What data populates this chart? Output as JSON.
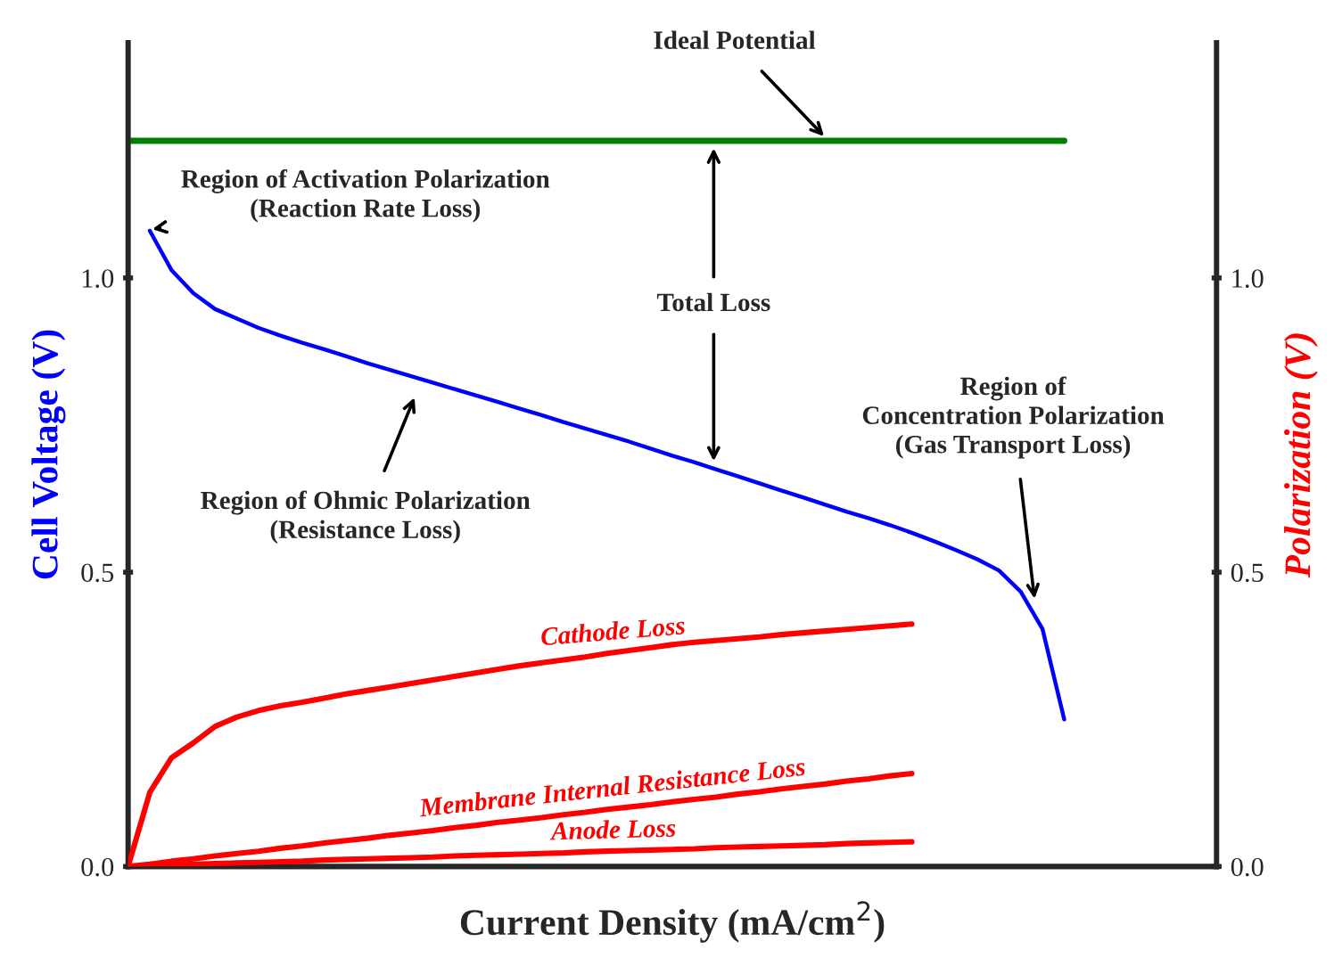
{
  "chart_data": {
    "type": "line",
    "xlabel": "Current Density (mA/cm$^{2}$)",
    "ylabel": "Cell Voltage (V)",
    "y2label": "Polarization (V)",
    "categories": [
      null,
      null,
      null,
      null,
      null,
      null,
      null,
      null,
      null,
      null,
      null,
      null,
      null,
      null,
      null,
      null,
      null,
      null,
      null,
      null,
      null,
      null,
      null,
      null,
      null,
      null,
      null,
      null,
      null,
      null,
      null,
      null,
      null,
      null,
      null,
      null,
      null,
      null,
      null,
      null,
      null,
      null,
      null,
      null,
      null,
      null,
      null,
      null,
      null,
      null,
      null
    ],
    "ylim": [
      0,
      1.4
    ],
    "yticks": [
      {
        "value": 0,
        "label": "0.0"
      },
      {
        "value": 0.5,
        "label": "0.5"
      },
      {
        "value": 1.0,
        "label": "1.0"
      }
    ],
    "y2lim": [
      0,
      1.4
    ],
    "y2ticks": [
      {
        "value": 0,
        "label": "0.0"
      },
      {
        "value": 0.5,
        "label": "0.5"
      },
      {
        "value": 1.0,
        "label": "1.0"
      }
    ],
    "tick_labels": "y",
    "grid": false,
    "legend": false,
    "marker": "none",
    "line_style": "solid",
    "series": [
      {
        "color": "#008000",
        "values": [
          1.233,
          1.233,
          1.233,
          1.233,
          1.233,
          1.233,
          1.233,
          1.233,
          1.233,
          1.233,
          1.233,
          1.233,
          1.233,
          1.233,
          1.233,
          1.233,
          1.233,
          1.233,
          1.233,
          1.233,
          1.233,
          1.233,
          1.233,
          1.233,
          1.233,
          1.233,
          1.233,
          1.233,
          1.233,
          1.233,
          1.233,
          1.233,
          1.233,
          1.233,
          1.233,
          1.233,
          1.233,
          1.233,
          1.233,
          1.233,
          1.233,
          1.233,
          1.233,
          1.233,
          null,
          null,
          null,
          null,
          null,
          null,
          null
        ]
      },
      {
        "color": "#0000ff",
        "values": [
          null,
          1.08,
          1.013,
          0.974,
          0.947,
          0.931,
          0.915,
          0.902,
          0.89,
          0.879,
          0.867,
          0.855,
          0.844,
          0.833,
          0.822,
          0.811,
          0.8,
          0.789,
          0.778,
          0.767,
          0.755,
          0.744,
          0.733,
          0.722,
          0.71,
          0.698,
          0.687,
          0.675,
          0.663,
          0.651,
          0.639,
          0.627,
          0.615,
          0.603,
          0.592,
          0.58,
          0.567,
          0.553,
          0.538,
          0.522,
          0.503,
          0.467,
          0.404,
          0.25,
          null,
          null,
          null,
          null,
          null,
          null,
          null
        ]
      },
      {
        "name": "Cathode Loss",
        "color": "#ff0000",
        "axis": "y2",
        "values": [
          0,
          0.126,
          0.185,
          0.21,
          0.238,
          0.254,
          0.265,
          0.273,
          0.279,
          0.286,
          0.293,
          0.299,
          0.305,
          0.311,
          0.317,
          0.323,
          0.329,
          0.335,
          0.341,
          0.346,
          0.351,
          0.356,
          0.362,
          0.367,
          0.372,
          0.377,
          0.381,
          0.384,
          0.387,
          0.39,
          0.394,
          0.397,
          0.4,
          0.403,
          0.406,
          0.409,
          0.412,
          null,
          null,
          null,
          null,
          null,
          null,
          null,
          null,
          null,
          null,
          null,
          null,
          null,
          null
        ]
      },
      {
        "name": "Membrane Internal Resistance Loss",
        "color": "#ff0000",
        "axis": "y2",
        "values": [
          0,
          0.004,
          0.009,
          0.013,
          0.018,
          0.022,
          0.026,
          0.031,
          0.035,
          0.04,
          0.044,
          0.048,
          0.053,
          0.057,
          0.061,
          0.066,
          0.07,
          0.075,
          0.079,
          0.083,
          0.088,
          0.092,
          0.097,
          0.101,
          0.105,
          0.11,
          0.114,
          0.118,
          0.123,
          0.127,
          0.132,
          0.136,
          0.14,
          0.145,
          0.149,
          0.154,
          0.158,
          null,
          null,
          null,
          null,
          null,
          null,
          null,
          null,
          null,
          null,
          null,
          null,
          null,
          null
        ]
      },
      {
        "name": "Anode Loss",
        "color": "#ff0000",
        "axis": "y2",
        "values": [
          0,
          0.001,
          0.002,
          0.004,
          0.005,
          0.006,
          0.007,
          0.008,
          0.009,
          0.011,
          0.012,
          0.013,
          0.014,
          0.015,
          0.016,
          0.018,
          0.019,
          0.02,
          0.021,
          0.022,
          0.023,
          0.025,
          0.026,
          0.027,
          0.028,
          0.029,
          0.03,
          0.032,
          0.033,
          0.034,
          0.035,
          0.036,
          0.037,
          0.039,
          0.04,
          0.041,
          0.042,
          null,
          null,
          null,
          null,
          null,
          null,
          null,
          null,
          null,
          null,
          null,
          null,
          null,
          null
        ]
      }
    ],
    "annotations": [
      "Ideal Potential",
      "Region of Activation Polarization\n(Reaction Rate Loss)",
      {
        "text": "Total Loss",
        "y": 0.676
      },
      "Region of Ohmic Polarization\n(Resistance Loss)",
      "Region of\nConcentration Polarization\n(Gas Transport Loss)"
    ]
  }
}
